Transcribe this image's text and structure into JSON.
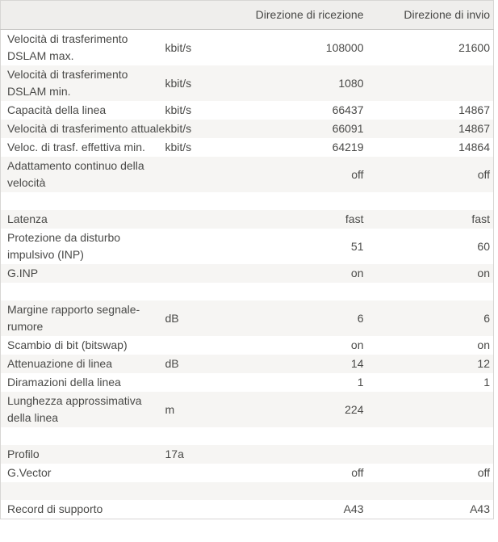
{
  "table": {
    "headers": {
      "rx": "Direzione di ricezione",
      "tx": "Direzione di invio"
    },
    "rows": [
      {
        "label": "Velocità di trasferimento DSLAM max.",
        "unit": "kbit/s",
        "rx": "108000",
        "tx": "21600"
      },
      {
        "label": "Velocità di trasferimento DSLAM min.",
        "unit": "kbit/s",
        "rx": "1080",
        "tx": ""
      },
      {
        "label": "Capacità della linea",
        "unit": "kbit/s",
        "rx": "66437",
        "tx": "14867"
      },
      {
        "label": "Velocità di trasferimento attuale",
        "unit": "kbit/s",
        "rx": "66091",
        "tx": "14867"
      },
      {
        "label": "Veloc. di trasf. effettiva min.",
        "unit": "kbit/s",
        "rx": "64219",
        "tx": "14864"
      },
      {
        "label": "Adattamento continuo della velocità",
        "unit": "",
        "rx": "off",
        "tx": "off"
      },
      {
        "spacer": true
      },
      {
        "label": "Latenza",
        "unit": "",
        "rx": "fast",
        "tx": "fast"
      },
      {
        "label": "Protezione da disturbo impulsivo (INP)",
        "unit": "",
        "rx": "51",
        "tx": "60"
      },
      {
        "label": "G.INP",
        "unit": "",
        "rx": "on",
        "tx": "on"
      },
      {
        "spacer": true
      },
      {
        "label": "Margine rapporto segnale-rumore",
        "unit": "dB",
        "rx": "6",
        "tx": "6"
      },
      {
        "label": "Scambio di bit (bitswap)",
        "unit": "",
        "rx": "on",
        "tx": "on"
      },
      {
        "label": "Attenuazione di linea",
        "unit": "dB",
        "rx": "14",
        "tx": "12"
      },
      {
        "label": "Diramazioni della linea",
        "unit": "",
        "rx": "1",
        "tx": "1"
      },
      {
        "label": "Lunghezza approssimativa della linea",
        "unit": "m",
        "rx": "224",
        "tx": ""
      },
      {
        "spacer": true
      },
      {
        "label": "Profilo",
        "unit": "17a",
        "rx": "",
        "tx": ""
      },
      {
        "label": "G.Vector",
        "unit": "",
        "rx": "off",
        "tx": "off"
      },
      {
        "spacer": true
      },
      {
        "label": "Record di supporto",
        "unit": "",
        "rx": "A43",
        "tx": "A43"
      }
    ]
  }
}
